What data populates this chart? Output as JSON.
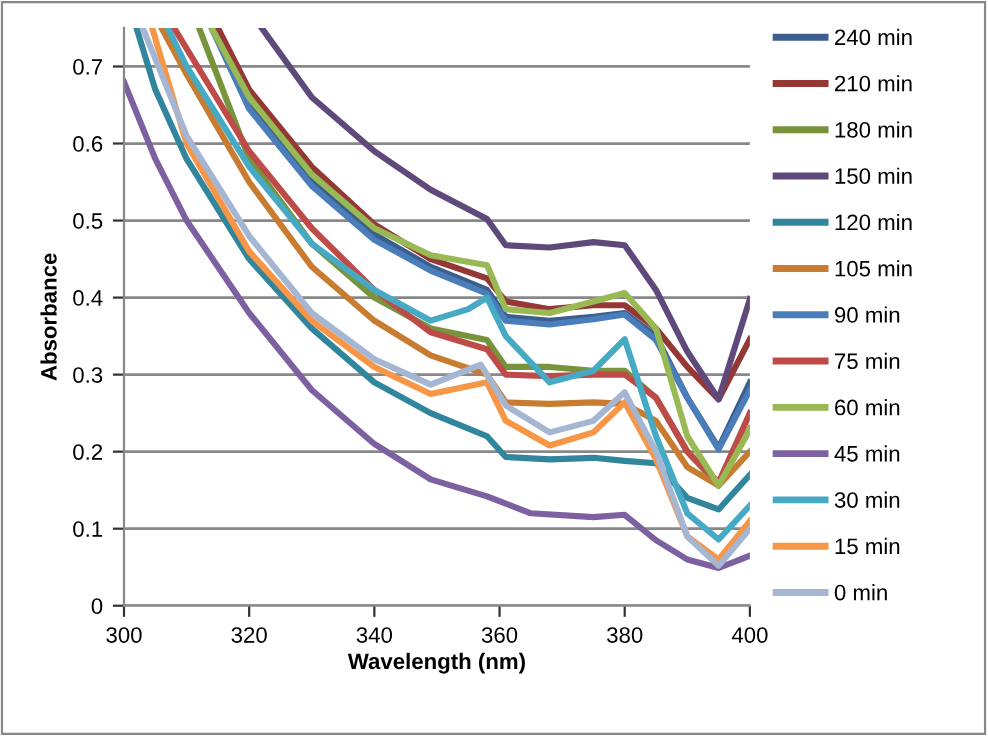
{
  "chart_data": {
    "type": "line",
    "xlabel": "Wavelength (nm)",
    "ylabel": "Absorbance",
    "xlim": [
      300,
      400
    ],
    "xticks": [
      300,
      320,
      340,
      360,
      380,
      400
    ],
    "ylim": [
      0,
      0.75
    ],
    "yticks": [
      0,
      0.1,
      0.2,
      0.3,
      0.4,
      0.5,
      0.6,
      0.7
    ],
    "grid": "y",
    "legend": "right",
    "marker": "none",
    "line_style": "solid",
    "series": [
      {
        "name": "240 min",
        "color": "#3b5e8c",
        "x": [
          314,
          320,
          330,
          340,
          349,
          358,
          361,
          368,
          375,
          380,
          385,
          390,
          395,
          400
        ],
        "values": [
          0.75,
          0.655,
          0.555,
          0.482,
          0.44,
          0.41,
          0.375,
          0.37,
          0.375,
          0.38,
          0.35,
          0.27,
          0.205,
          0.29
        ]
      },
      {
        "name": "210 min",
        "color": "#953735",
        "x": [
          315,
          320,
          330,
          340,
          349,
          358,
          361,
          368,
          375,
          380,
          385,
          390,
          395,
          400
        ],
        "values": [
          0.75,
          0.67,
          0.57,
          0.495,
          0.45,
          0.425,
          0.395,
          0.385,
          0.39,
          0.39,
          0.36,
          0.31,
          0.268,
          0.346
        ]
      },
      {
        "name": "180 min",
        "color": "#77933c",
        "x": [
          312,
          320,
          330,
          340,
          349,
          358,
          361,
          368,
          375,
          380,
          385,
          390,
          395,
          400
        ],
        "values": [
          0.75,
          0.58,
          0.47,
          0.4,
          0.36,
          0.345,
          0.31,
          0.31,
          0.305,
          0.305,
          0.27,
          0.2,
          0.156,
          0.23
        ]
      },
      {
        "name": "150 min",
        "color": "#5f497a",
        "x": [
          322,
          330,
          340,
          349,
          358,
          361,
          368,
          375,
          380,
          385,
          390,
          395,
          400
        ],
        "values": [
          0.75,
          0.66,
          0.59,
          0.54,
          0.502,
          0.468,
          0.465,
          0.472,
          0.468,
          0.41,
          0.33,
          0.268,
          0.398
        ]
      },
      {
        "name": "120 min",
        "color": "#31859c",
        "x": [
          302,
          305,
          310,
          320,
          330,
          340,
          349,
          358,
          361,
          368,
          375,
          380,
          385,
          390,
          395,
          400
        ],
        "values": [
          0.75,
          0.67,
          0.58,
          0.45,
          0.36,
          0.29,
          0.25,
          0.22,
          0.193,
          0.19,
          0.192,
          0.188,
          0.185,
          0.14,
          0.125,
          0.17
        ]
      },
      {
        "name": "105 min",
        "color": "#c77c30",
        "x": [
          306,
          310,
          320,
          330,
          340,
          349,
          358,
          361,
          368,
          375,
          380,
          385,
          390,
          395,
          400
        ],
        "values": [
          0.75,
          0.69,
          0.55,
          0.44,
          0.37,
          0.325,
          0.3,
          0.264,
          0.262,
          0.264,
          0.262,
          0.24,
          0.18,
          0.156,
          0.2
        ]
      },
      {
        "name": "90 min",
        "color": "#4a7ebb",
        "x": [
          314,
          320,
          330,
          340,
          349,
          358,
          361,
          368,
          375,
          380,
          385,
          390,
          395,
          400
        ],
        "values": [
          0.75,
          0.645,
          0.545,
          0.475,
          0.435,
          0.405,
          0.37,
          0.365,
          0.372,
          0.378,
          0.345,
          0.27,
          0.203,
          0.28
        ]
      },
      {
        "name": "75 min",
        "color": "#be4b48",
        "x": [
          308,
          320,
          330,
          340,
          349,
          358,
          361,
          368,
          375,
          380,
          385,
          390,
          395,
          400
        ],
        "values": [
          0.75,
          0.59,
          0.49,
          0.41,
          0.355,
          0.333,
          0.3,
          0.298,
          0.3,
          0.3,
          0.27,
          0.2,
          0.16,
          0.25
        ]
      },
      {
        "name": "60 min",
        "color": "#98b954",
        "x": [
          314,
          320,
          330,
          340,
          349,
          358,
          361,
          368,
          375,
          380,
          385,
          390,
          395,
          400
        ],
        "values": [
          0.75,
          0.66,
          0.56,
          0.49,
          0.455,
          0.442,
          0.385,
          0.38,
          0.395,
          0.406,
          0.36,
          0.22,
          0.156,
          0.229
        ]
      },
      {
        "name": "45 min",
        "color": "#7d60a0",
        "x": [
          300,
          305,
          310,
          320,
          330,
          340,
          349,
          358,
          365,
          375,
          380,
          385,
          390,
          395,
          400
        ],
        "values": [
          0.68,
          0.58,
          0.5,
          0.38,
          0.28,
          0.21,
          0.164,
          0.142,
          0.12,
          0.115,
          0.118,
          0.085,
          0.06,
          0.049,
          0.065
        ]
      },
      {
        "name": "30 min",
        "color": "#46aac5",
        "x": [
          307,
          310,
          320,
          330,
          340,
          349,
          355,
          358,
          361,
          368,
          375,
          380,
          385,
          390,
          395,
          400
        ],
        "values": [
          0.75,
          0.7,
          0.57,
          0.47,
          0.41,
          0.37,
          0.385,
          0.4,
          0.35,
          0.29,
          0.305,
          0.346,
          0.22,
          0.12,
          0.086,
          0.13
        ]
      },
      {
        "name": "15 min",
        "color": "#f79646",
        "x": [
          304.5,
          310,
          320,
          330,
          340,
          349,
          358,
          361,
          368,
          375,
          380,
          385,
          390,
          395,
          400
        ],
        "values": [
          0.75,
          0.6,
          0.46,
          0.37,
          0.31,
          0.275,
          0.29,
          0.24,
          0.208,
          0.225,
          0.264,
          0.19,
          0.09,
          0.06,
          0.11
        ]
      },
      {
        "name": "0 min",
        "color": "#a5b6d3",
        "x": [
          303,
          310,
          320,
          330,
          340,
          349,
          357,
          361,
          368,
          375,
          380,
          385,
          390,
          395,
          400
        ],
        "values": [
          0.75,
          0.61,
          0.48,
          0.38,
          0.32,
          0.287,
          0.313,
          0.26,
          0.225,
          0.24,
          0.277,
          0.2,
          0.09,
          0.052,
          0.1
        ]
      }
    ]
  }
}
